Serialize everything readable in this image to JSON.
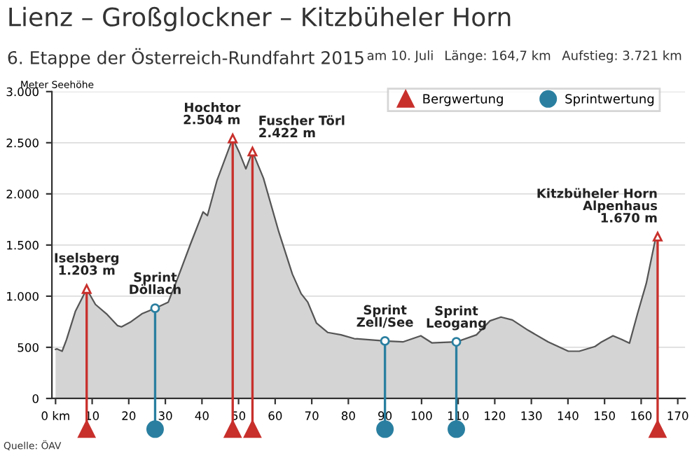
{
  "chart_data": {
    "type": "area",
    "title": "Lienz – Großglockner – Kitzbüheler Horn",
    "subtitle": "6. Etappe der Österreich-Rundfahrt 2015",
    "ylabel": "Meter Seehöhe",
    "xlim": [
      -1,
      172
    ],
    "ylim": [
      0,
      3000
    ],
    "xticks": [
      {
        "value": 0,
        "label": "0 km"
      },
      10,
      20,
      30,
      40,
      50,
      60,
      70,
      80,
      90,
      100,
      110,
      120,
      130,
      140,
      150,
      160,
      170
    ],
    "yticks": [
      0,
      500,
      {
        "value": 1000,
        "label": "1.000"
      },
      {
        "value": 1500,
        "label": "1.500"
      },
      {
        "value": 2000,
        "label": "2.000"
      },
      {
        "value": 2500,
        "label": "2.500"
      },
      {
        "value": 3000,
        "label": "3.000"
      }
    ],
    "grid": "y",
    "legend": "top right",
    "series": [
      {
        "color": "#d4d4d4",
        "x": [
          0,
          0.4,
          1.8,
          3,
          5.4,
          8.5,
          10.9,
          13.9,
          16.9,
          18,
          20.6,
          23.6,
          27.2,
          30.8,
          33.3,
          36.9,
          40.3,
          41.5,
          44.1,
          48.4,
          50.2,
          52,
          53.8,
          56.8,
          61,
          64.7,
          67.1,
          68.9,
          71.3,
          74.4,
          78,
          81.6,
          90,
          94.9,
          99.8,
          102.8,
          109.5,
          115,
          118.7,
          121.7,
          124.8,
          129.1,
          134.6,
          140.1,
          143.1,
          147.4,
          149.2,
          152.3,
          154.7,
          156.8,
          159,
          161.4,
          163.9,
          164.5
        ],
        "values": [
          480,
          485,
          462,
          576,
          850,
          1070,
          919,
          828,
          713,
          700,
          750,
          828,
          882,
          942,
          1170,
          1513,
          1824,
          1788,
          2131,
          2542,
          2405,
          2245,
          2414,
          2154,
          1628,
          1216,
          1024,
          942,
          736,
          645,
          622,
          585,
          562,
          553,
          613,
          544,
          553,
          622,
          759,
          796,
          768,
          667,
          553,
          462,
          462,
          508,
          553,
          613,
          576,
          540,
          828,
          1125,
          1559,
          1582
        ]
      },
      {
        "type": "lollipop",
        "name": "Bergwertung",
        "color": "#c8302c",
        "marker": "triangle",
        "x": [
          8.5,
          48.4,
          53.8,
          164.5
        ],
        "values": [
          1070,
          2542,
          2414,
          1582
        ]
      },
      {
        "type": "lollipop",
        "name": "Sprintwertung",
        "color": "#2a7fa0",
        "marker": "circle",
        "x": [
          27.2,
          90,
          109.5
        ],
        "values": [
          882,
          562,
          553
        ]
      }
    ],
    "annotations": [
      {
        "text": "Iselsberg\n1.203 m",
        "x": 8.5,
        "y": 1070
      },
      {
        "text": "Sprint\nDöllach",
        "x": 27.2,
        "y": 882
      },
      {
        "text": "Hochtor\n2.504 m",
        "x": 48.4,
        "y": 2542
      },
      {
        "text": "Fuscher Törl\n2.422 m",
        "x": 53.8,
        "y": 2414
      },
      {
        "text": "Sprint\nZell/See",
        "x": 90,
        "y": 562
      },
      {
        "text": "Sprint\nLeogang",
        "x": 109.5,
        "y": 553
      },
      {
        "text": "Kitzbüheler Horn\nAlpenhaus\n1.670 m",
        "x": 164.5,
        "y": 1582
      },
      "am 10. Juli",
      "Länge: 164,7 km",
      "Aufstieg: 3.721 km",
      "Quelle: ÖAV"
    ]
  }
}
